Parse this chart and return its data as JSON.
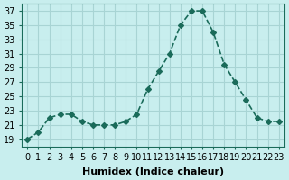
{
  "x": [
    0,
    1,
    2,
    3,
    4,
    5,
    6,
    7,
    8,
    9,
    10,
    11,
    12,
    13,
    14,
    15,
    16,
    17,
    18,
    19,
    20,
    21,
    22,
    23
  ],
  "y": [
    19,
    20,
    22,
    22.5,
    22.5,
    21.5,
    21,
    21,
    21,
    21.5,
    22.5,
    26,
    28.5,
    31,
    35,
    37,
    37,
    34,
    29.5,
    27,
    24.5,
    22,
    21.5,
    21.5
  ],
  "line_color": "#1a6b5a",
  "marker": "D",
  "marker_size": 3,
  "bg_color": "#c8eeee",
  "grid_color": "#a8d4d4",
  "xlabel": "Humidex (Indice chaleur)",
  "xlim": [
    -0.5,
    23.5
  ],
  "ylim": [
    18,
    38
  ],
  "yticks": [
    19,
    21,
    23,
    25,
    27,
    29,
    31,
    33,
    35,
    37
  ],
  "xtick_labels": [
    "0",
    "1",
    "2",
    "3",
    "4",
    "5",
    "6",
    "7",
    "8",
    "9",
    "10",
    "11",
    "12",
    "13",
    "14",
    "15",
    "16",
    "17",
    "18",
    "19",
    "20",
    "21",
    "22",
    "23"
  ],
  "xlabel_fontsize": 8,
  "tick_fontsize": 7,
  "figsize": [
    3.2,
    2.0
  ],
  "dpi": 100
}
